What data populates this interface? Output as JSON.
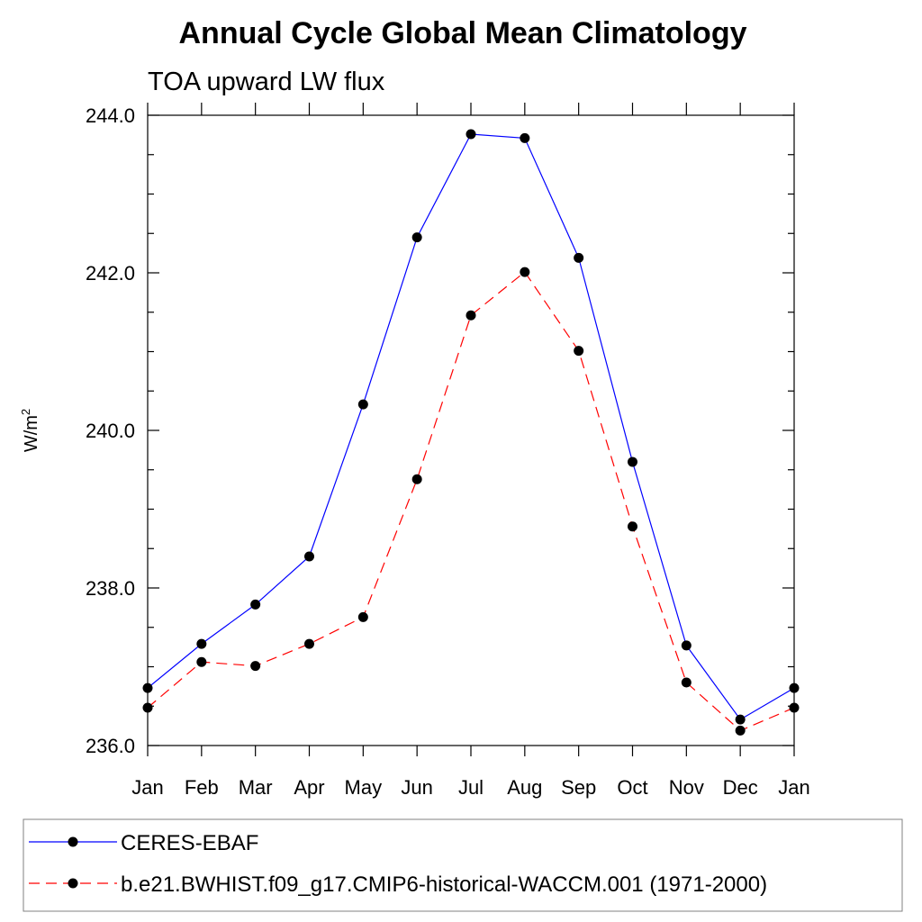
{
  "chart_data": {
    "type": "line",
    "title": "Annual Cycle Global Mean Climatology",
    "subtitle": "TOA upward LW flux",
    "ylabel_base": "W/m",
    "ylabel_sup": "2",
    "ylim": [
      236.0,
      244.0
    ],
    "y_ticks": [
      "236.0",
      "238.0",
      "240.0",
      "242.0",
      "244.0"
    ],
    "categories": [
      "Jan",
      "Feb",
      "Mar",
      "Apr",
      "May",
      "Jun",
      "Jul",
      "Aug",
      "Sep",
      "Oct",
      "Nov",
      "Dec",
      "Jan"
    ],
    "series": [
      {
        "name": "CERES-EBAF",
        "color": "#0000ff",
        "dashed": false,
        "values": [
          236.73,
          237.29,
          237.79,
          238.4,
          240.33,
          242.45,
          243.76,
          243.71,
          242.19,
          239.6,
          237.27,
          236.33,
          236.73
        ]
      },
      {
        "name": "b.e21.BWHIST.f09_g17.CMIP6-historical-WACCM.001 (1971-2000)",
        "color": "#ff0000",
        "dashed": true,
        "values": [
          236.48,
          237.06,
          237.01,
          237.29,
          237.63,
          239.38,
          241.46,
          242.01,
          241.01,
          238.78,
          236.8,
          236.19,
          236.48
        ]
      }
    ]
  }
}
